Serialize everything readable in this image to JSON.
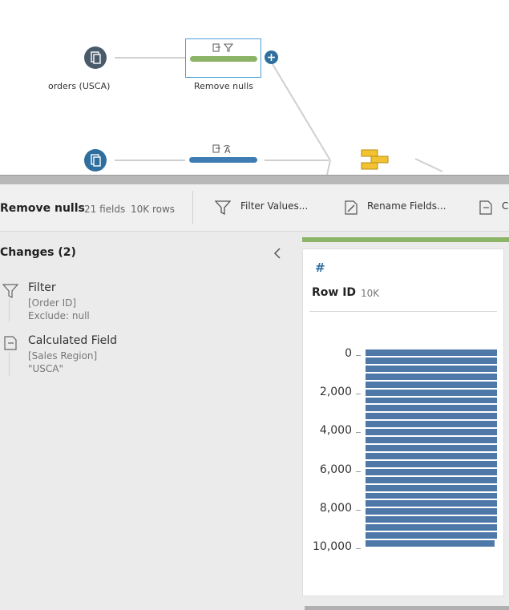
{
  "flow": {
    "input1_label": "orders (USCA)",
    "step1_label": "Remove nulls"
  },
  "toolbar": {
    "step_name": "Remove nulls",
    "fields": "21 fields",
    "rows": "10K rows",
    "filter_values": "Filter Values...",
    "rename_fields": "Rename Fields...",
    "more_label": "C"
  },
  "changes": {
    "title": "Changes (2)",
    "items": [
      {
        "name": "Filter",
        "detail1": "[Order ID]",
        "detail2": "Exclude: null",
        "icon": "filter-icon"
      },
      {
        "name": "Calculated Field",
        "detail1": "[Sales Region]",
        "detail2": "\"USCA\"",
        "icon": "calc-field-icon"
      }
    ]
  },
  "profile_card": {
    "type_symbol": "#",
    "field_name": "Row ID",
    "count": "10K"
  },
  "colors": {
    "accent_green": "#8cb466",
    "accent_blue": "#2f6fa0",
    "bar_blue": "#4e78a8",
    "selected_border": "#4a9fd8"
  },
  "chart_data": {
    "type": "bar",
    "orientation": "horizontal",
    "title": "Row ID",
    "y_ticks": [
      "0",
      "2,000",
      "4,000",
      "6,000",
      "8,000",
      "10,000"
    ],
    "ylim": [
      0,
      10000
    ],
    "bin_count": 25,
    "values": [
      1,
      1,
      1,
      1,
      1,
      1,
      1,
      1,
      1,
      1,
      1,
      1,
      1,
      1,
      1,
      1,
      1,
      1,
      1,
      1,
      1,
      1,
      1,
      1,
      0.98
    ]
  }
}
